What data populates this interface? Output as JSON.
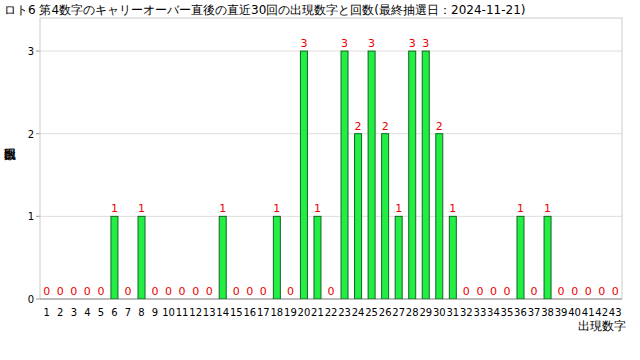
{
  "chart_data": {
    "type": "bar",
    "title": "ロト6 第4数字のキャリーオーバー直後の直近30回の出現数字と回数(最終抽選日：2024-11-21)",
    "x_label": "出現数字",
    "y_label": "出現回数",
    "categories": [
      "1",
      "2",
      "3",
      "4",
      "5",
      "6",
      "7",
      "8",
      "9",
      "10",
      "11",
      "12",
      "13",
      "14",
      "15",
      "16",
      "17",
      "18",
      "19",
      "20",
      "21",
      "22",
      "23",
      "24",
      "25",
      "26",
      "27",
      "28",
      "29",
      "30",
      "31",
      "32",
      "33",
      "34",
      "35",
      "36",
      "37",
      "38",
      "39",
      "40",
      "41",
      "42",
      "43"
    ],
    "values": [
      0,
      0,
      0,
      0,
      0,
      1,
      0,
      1,
      0,
      0,
      0,
      0,
      0,
      1,
      0,
      0,
      0,
      1,
      0,
      3,
      1,
      0,
      3,
      2,
      3,
      2,
      1,
      3,
      3,
      2,
      1,
      0,
      0,
      0,
      0,
      1,
      0,
      1,
      0,
      0,
      0,
      0,
      0
    ],
    "color": "#22ee44",
    "ylim": [
      0,
      3.4
    ],
    "yticks": [
      0,
      1,
      2,
      3
    ],
    "grid": true,
    "data_labels": true
  }
}
